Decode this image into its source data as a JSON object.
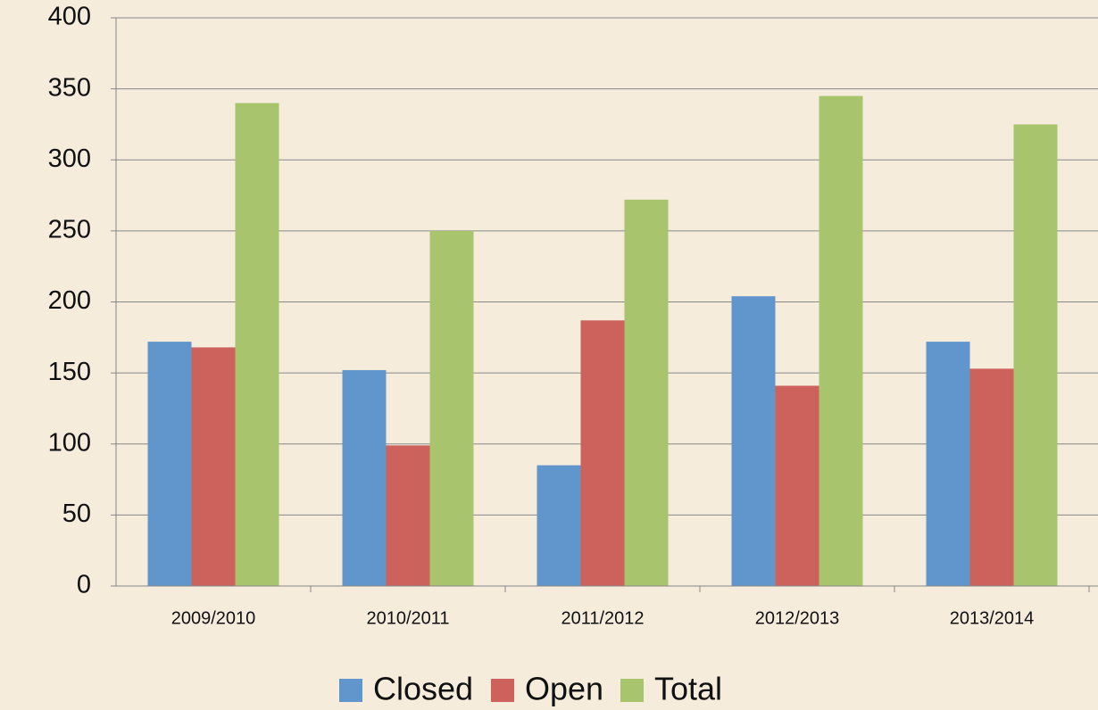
{
  "chart_data": {
    "type": "bar",
    "categories": [
      "2009/2010",
      "2010/2011",
      "2011/2012",
      "2012/2013",
      "2013/2014"
    ],
    "series": [
      {
        "name": "Closed",
        "color": "#6196cc",
        "values": [
          172,
          152,
          85,
          204,
          172
        ]
      },
      {
        "name": "Open",
        "color": "#cd625d",
        "values": [
          168,
          99,
          187,
          141,
          153
        ]
      },
      {
        "name": "Total",
        "color": "#a8c46c",
        "values": [
          340,
          250,
          272,
          345,
          325
        ]
      }
    ],
    "ylim": [
      0,
      400
    ],
    "yticks": [
      0,
      50,
      100,
      150,
      200,
      250,
      300,
      350,
      400
    ],
    "grid": true,
    "legend": "bottom"
  }
}
